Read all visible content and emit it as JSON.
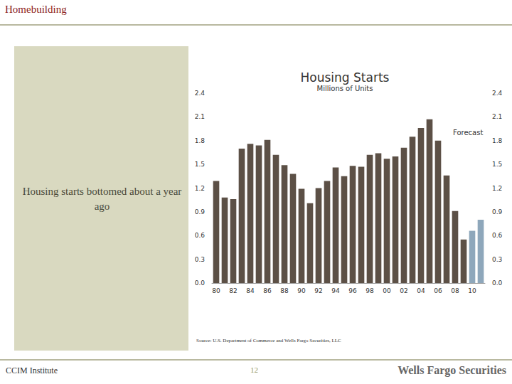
{
  "slide": {
    "header": "Homebuilding",
    "panel_text": "Housing starts bottomed about a year ago",
    "source": "Source: U.S. Department of Commerce and Wells Fargo Securities, LLC",
    "footer_left": "CCIM Institute",
    "page_number": "12",
    "footer_right": "Wells Fargo Securities"
  },
  "chart_data": {
    "type": "bar",
    "title": "Housing Starts",
    "subtitle": "Millions of Units",
    "annotation": "Forecast",
    "categories": [
      "80",
      null,
      "82",
      null,
      "84",
      null,
      "86",
      null,
      "88",
      null,
      "90",
      null,
      "92",
      null,
      "94",
      null,
      "96",
      null,
      "98",
      null,
      "00",
      null,
      "02",
      null,
      "04",
      null,
      "06",
      null,
      "08",
      null,
      "10",
      null
    ],
    "values": [
      1.29,
      1.08,
      1.06,
      1.7,
      1.76,
      1.74,
      1.81,
      1.62,
      1.49,
      1.38,
      1.19,
      1.01,
      1.2,
      1.29,
      1.46,
      1.35,
      1.48,
      1.47,
      1.62,
      1.64,
      1.57,
      1.6,
      1.71,
      1.85,
      1.96,
      2.07,
      1.8,
      1.36,
      0.91,
      0.55,
      0.66,
      0.8
    ],
    "colors": [
      "#5c5046",
      "#5c5046",
      "#5c5046",
      "#5c5046",
      "#5c5046",
      "#5c5046",
      "#5c5046",
      "#5c5046",
      "#5c5046",
      "#5c5046",
      "#5c5046",
      "#5c5046",
      "#5c5046",
      "#5c5046",
      "#5c5046",
      "#5c5046",
      "#5c5046",
      "#5c5046",
      "#5c5046",
      "#5c5046",
      "#5c5046",
      "#5c5046",
      "#5c5046",
      "#5c5046",
      "#5c5046",
      "#5c5046",
      "#5c5046",
      "#5c5046",
      "#5c5046",
      "#5c5046",
      "#8ea7bb",
      "#8ea7bb"
    ],
    "ylim": [
      0,
      2.4
    ],
    "yticks": [
      {
        "value": 0,
        "label": "0.0"
      },
      0.3,
      0.6,
      0.9,
      1.2,
      1.5,
      1.8,
      2.1,
      2.4
    ],
    "y2lim": [
      0,
      2.4
    ],
    "y2ticks": [
      {
        "value": 0,
        "label": "0.0"
      },
      0.3,
      0.6,
      0.9,
      1.2,
      1.5,
      1.8,
      2.1,
      2.4
    ],
    "grid": false
  }
}
